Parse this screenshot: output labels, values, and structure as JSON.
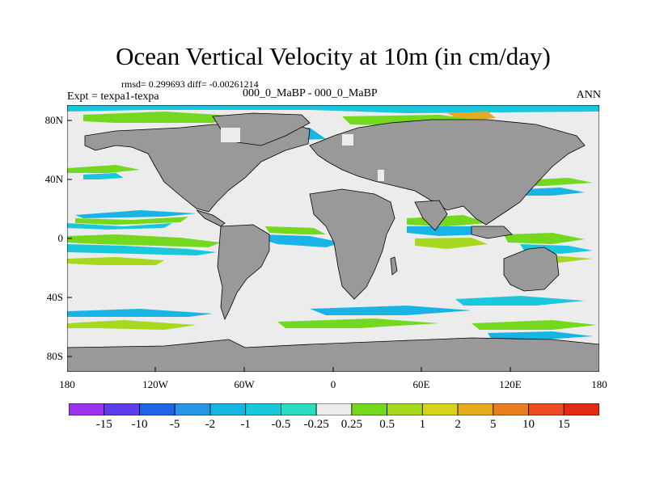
{
  "title": "Ocean Vertical Velocity at 10m (in cm/day)",
  "stats": "rmsd= 0.299693 diff= -0.00261214",
  "expt": "Expt = texpa1-texpa",
  "case": "000_0_MaBP - 000_0_MaBP",
  "season": "ANN",
  "lat_labels": [
    "80N",
    "40N",
    "0",
    "40S",
    "80S"
  ],
  "lon_labels": [
    "180",
    "120W",
    "60W",
    "0",
    "60E",
    "120E",
    "180"
  ],
  "colorbar": {
    "labels": [
      "-15",
      "-10",
      "-5",
      "-2",
      "-1",
      "-0.5",
      "-0.25",
      "0.25",
      "0.5",
      "1",
      "2",
      "5",
      "10",
      "15"
    ],
    "colors": [
      "#9b33ef",
      "#5d3de8",
      "#1e64e6",
      "#2896e8",
      "#19b4e6",
      "#19c8dc",
      "#2bdcc0",
      "#ececec",
      "#73d81e",
      "#a6d81e",
      "#d7d21e",
      "#e6aa1e",
      "#ea7e1e",
      "#e94e1e",
      "#e12a14"
    ]
  },
  "colors": {
    "land": "#999999",
    "ocean_background": "#ececec"
  }
}
